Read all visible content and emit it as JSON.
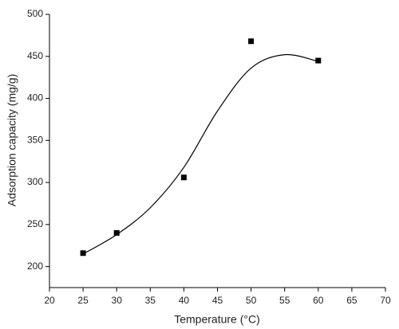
{
  "chart_data": {
    "type": "scatter",
    "x_label": "Temperature (°C)",
    "y_label": "Adsorption capacity (mg/g)",
    "xlim": [
      20,
      70
    ],
    "xticks": [
      20,
      25,
      30,
      35,
      40,
      45,
      50,
      55,
      60,
      65,
      70
    ],
    "ylim": [
      175,
      500
    ],
    "yticks": [
      200,
      250,
      300,
      350,
      400,
      450,
      500
    ],
    "series": [
      {
        "kind": "points",
        "color": "#000000",
        "x": [
          25,
          30,
          40,
          50,
          60
        ],
        "values": [
          216,
          240,
          306,
          468,
          445
        ]
      },
      {
        "kind": "line",
        "color": "#000000",
        "x": [
          25,
          30,
          35,
          40,
          45,
          50,
          55,
          60
        ],
        "values": [
          215,
          238,
          270,
          318,
          385,
          436,
          452,
          444
        ]
      }
    ]
  }
}
